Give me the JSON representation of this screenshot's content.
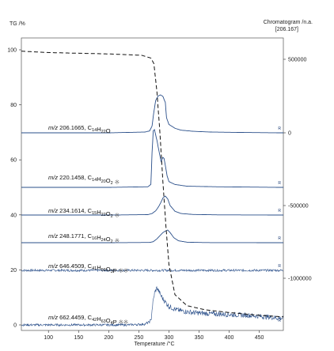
{
  "chart_data": {
    "type": "line",
    "left_axis": {
      "title": "TG /%",
      "range": [
        0,
        100
      ],
      "ticks": [
        "0",
        "20",
        "40",
        "60",
        "80",
        "100"
      ]
    },
    "right_axis": {
      "title": "Chromatogram /n.a.",
      "subtitle": "[206.167]",
      "ticks": [
        "500000",
        "0",
        "-500000",
        "-1000000"
      ]
    },
    "x_axis": {
      "title": "Temperature /°C",
      "ticks": [
        "100",
        "150",
        "200",
        "250",
        "300",
        "350",
        "400",
        "450"
      ],
      "range": [
        55,
        490
      ]
    },
    "tg_curve": {
      "name": "TG",
      "style": "dashed",
      "x": [
        55,
        100,
        200,
        255,
        270,
        275,
        280,
        285,
        290,
        295,
        300,
        310,
        330,
        360,
        400,
        450,
        485
      ],
      "y": [
        99.5,
        99.0,
        98.5,
        98.0,
        97.0,
        95.0,
        85.0,
        70.0,
        52.0,
        36.0,
        22.0,
        11.0,
        7.0,
        5.5,
        4.5,
        3.5,
        3.0
      ]
    },
    "series": [
      {
        "mz": "206.1665",
        "formula_html": "C<sub>14</sub>H<sub>22</sub>O",
        "marks": "",
        "x": [
          55,
          200,
          260,
          268,
          272,
          275,
          278,
          282,
          286,
          290,
          294,
          296,
          300,
          310,
          320,
          340,
          370,
          420,
          485
        ],
        "y": [
          0,
          0,
          0.02,
          0.05,
          0.18,
          0.55,
          0.85,
          0.97,
          1.0,
          0.96,
          0.8,
          0.4,
          0.22,
          0.12,
          0.07,
          0.04,
          0.02,
          0.01,
          0
        ]
      },
      {
        "mz": "220.1458",
        "formula_html": "C<sub>14</sub>H<sub>20</sub>O<sub>2</sub>",
        "marks": "※",
        "x": [
          55,
          200,
          265,
          270,
          272,
          274,
          276,
          280,
          284,
          287,
          290,
          292,
          294,
          297,
          300,
          310,
          330,
          380,
          485
        ],
        "y": [
          0,
          0,
          0.01,
          0.05,
          0.6,
          0.98,
          1.0,
          0.82,
          0.6,
          0.45,
          0.52,
          0.5,
          0.38,
          0.2,
          0.1,
          0.05,
          0.02,
          0.01,
          0
        ]
      },
      {
        "mz": "234.1614",
        "formula_html": "C<sub>15</sub>H<sub>22</sub>O<sub>2</sub>",
        "marks": "※",
        "x": [
          55,
          200,
          265,
          272,
          278,
          282,
          286,
          290,
          294,
          298,
          302,
          310,
          320,
          340,
          380,
          485
        ],
        "y": [
          0,
          0,
          0.02,
          0.08,
          0.22,
          0.4,
          0.62,
          0.9,
          1.0,
          0.85,
          0.5,
          0.2,
          0.08,
          0.03,
          0.01,
          0
        ]
      },
      {
        "mz": "248.1771",
        "formula_html": "C<sub>16</sub>H<sub>24</sub>O<sub>2</sub>",
        "marks": "※",
        "x": [
          55,
          200,
          268,
          274,
          280,
          286,
          290,
          294,
          298,
          302,
          308,
          316,
          330,
          360,
          485
        ],
        "y": [
          0,
          0,
          0.02,
          0.08,
          0.3,
          0.6,
          0.8,
          0.92,
          1.0,
          0.8,
          0.4,
          0.15,
          0.04,
          0.01,
          0
        ]
      },
      {
        "mz": "646.4509",
        "formula_html": "C<sub>41</sub>H<sub>59</sub>O<sub>3</sub>P",
        "marks": "※※",
        "noise": true,
        "x": [
          55,
          485
        ],
        "y": [
          0,
          0
        ]
      },
      {
        "mz": "662.4459",
        "formula_html": "C<sub>42</sub>H<sub>63</sub>O<sub>4</sub>P",
        "marks": "※※",
        "noise": true,
        "x": [
          55,
          230,
          260,
          270,
          273,
          276,
          280,
          285,
          290,
          295,
          300,
          310,
          320,
          340,
          370,
          400,
          430,
          460,
          485
        ],
        "y": [
          0,
          0,
          0.02,
          0.1,
          0.55,
          0.85,
          1.0,
          0.85,
          0.7,
          0.6,
          0.5,
          0.42,
          0.38,
          0.33,
          0.3,
          0.28,
          0.26,
          0.22,
          0.18
        ]
      }
    ],
    "right_marker": "R"
  }
}
